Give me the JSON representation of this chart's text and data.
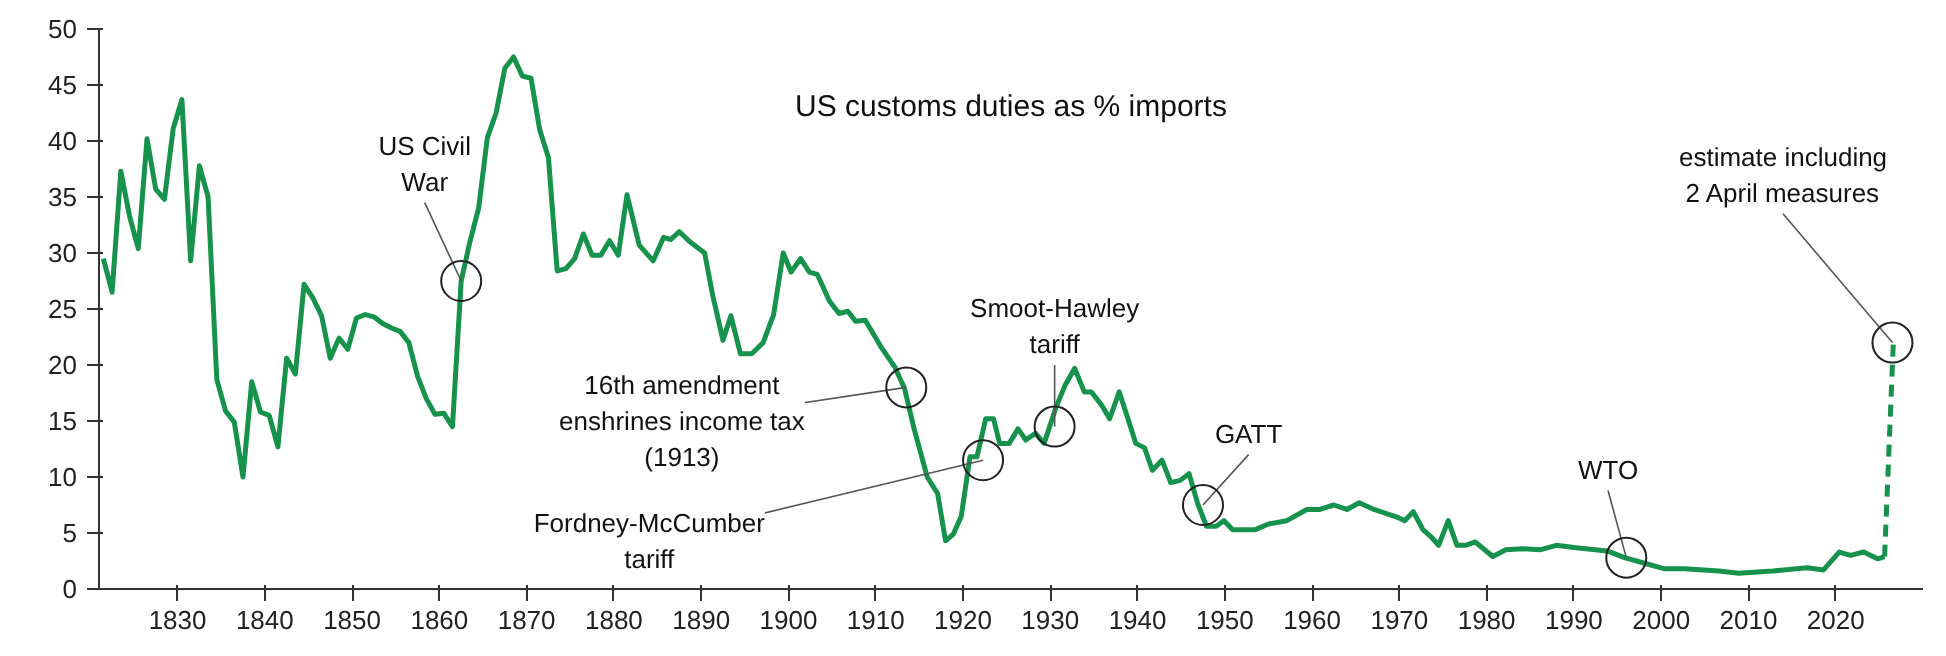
{
  "chart_data": {
    "type": "line",
    "title": "US customs duties as % imports",
    "xlim": [
      1821,
      2030
    ],
    "xticks": [
      1830,
      1840,
      1850,
      1860,
      1870,
      1880,
      1890,
      1900,
      1910,
      1920,
      1930,
      1940,
      1950,
      1960,
      1970,
      1980,
      1990,
      2000,
      2010,
      2020
    ],
    "ylim": [
      0,
      50
    ],
    "yticks": [
      0,
      5,
      10,
      15,
      20,
      25,
      30,
      35,
      40,
      45,
      50
    ],
    "grid": false,
    "series": [
      {
        "color": "#16924c",
        "line_style": "solid",
        "x": [
          1821.5,
          1822.5,
          1823.5,
          1824.5,
          1825.5,
          1826.5,
          1827.5,
          1828.5,
          1829.5,
          1830.5,
          1831.5,
          1832.5,
          1833.5,
          1834.5,
          1835.5,
          1836.5,
          1837.5,
          1838.5,
          1839.5,
          1840.5,
          1841.5,
          1842.5,
          1843.5,
          1844.5,
          1845.5,
          1846.5,
          1847.5,
          1848.5,
          1849.5,
          1850.5,
          1851.5,
          1852.5,
          1853.5,
          1854.5,
          1855.5,
          1856.5,
          1857.5,
          1858.5,
          1859.5,
          1860.5,
          1861.5,
          1862.5,
          1863.5,
          1864.5,
          1865.5,
          1866.5,
          1867.5,
          1868.5,
          1869.5,
          1870.5,
          1871.5,
          1872.5,
          1873.5,
          1874.5,
          1875.5,
          1876.5,
          1877.5,
          1878.5,
          1879.5,
          1880.5,
          1881.5,
          1882.9,
          1884.5,
          1885.7,
          1886.5,
          1887.5,
          1888.7,
          1890.4,
          1891.3,
          1892.5,
          1893.4,
          1894.5,
          1895.8,
          1897.1,
          1898.3,
          1899.4,
          1900.3,
          1901.4,
          1902.4,
          1903.3,
          1904.7,
          1905.8,
          1906.8,
          1907.7,
          1908.8,
          1910.7,
          1912.2,
          1913.3,
          1914.4,
          1915.9,
          1917.1,
          1918.0,
          1918.9,
          1919.8,
          1920.8,
          1921.6,
          1922.6,
          1923.5,
          1924.2,
          1925.3,
          1926.3,
          1927.2,
          1928.3,
          1929.3,
          1930.6,
          1931.7,
          1932.8,
          1933.9,
          1934.7,
          1935.9,
          1936.8,
          1937.9,
          1938.9,
          1939.8,
          1940.8,
          1941.7,
          1942.8,
          1943.8,
          1944.9,
          1945.9,
          1946.9,
          1947.9,
          1949.0,
          1949.9,
          1950.9,
          1953.5,
          1955.0,
          1957.1,
          1959.4,
          1960.9,
          1962.5,
          1964.0,
          1965.4,
          1967.1,
          1969.8,
          1970.6,
          1971.6,
          1972.7,
          1973.7,
          1974.5,
          1975.6,
          1976.6,
          1977.6,
          1978.7,
          1980.7,
          1982.2,
          1984.1,
          1986.1,
          1988.0,
          1990.0,
          1993.8,
          1995.8,
          1998.1,
          2000.4,
          2002.7,
          2006.6,
          2008.9,
          2012.8,
          2016.7,
          2018.6,
          2020.4,
          2021.7,
          2023.2,
          2024.8,
          2025.6
        ],
        "values": [
          29.5,
          26.5,
          37.3,
          33.3,
          30.4,
          40.2,
          35.7,
          34.8,
          41.1,
          43.7,
          29.3,
          37.8,
          35,
          18.7,
          15.9,
          14.9,
          10,
          18.5,
          15.8,
          15.5,
          12.7,
          20.6,
          19.2,
          27.2,
          26,
          24.4,
          20.6,
          22.4,
          21.4,
          24.2,
          24.5,
          24.3,
          23.7,
          23.3,
          23,
          22,
          19,
          17,
          15.6,
          15.7,
          14.5,
          27.5,
          31,
          34,
          40.3,
          42.5,
          46.5,
          47.5,
          45.8,
          45.6,
          41,
          38.5,
          28.4,
          28.6,
          29.5,
          31.7,
          29.8,
          29.8,
          31.1,
          29.8,
          35.2,
          30.7,
          29.3,
          31.4,
          31.2,
          31.9,
          31,
          30,
          26.3,
          22.2,
          24.4,
          21,
          21,
          22,
          24.5,
          30,
          28.3,
          29.5,
          28.3,
          28.1,
          25.7,
          24.6,
          24.8,
          23.9,
          24,
          21.5,
          19.8,
          17.9,
          14.3,
          10,
          8.5,
          4.3,
          4.9,
          6.5,
          11.8,
          11.8,
          15.2,
          15.2,
          13,
          13,
          14.3,
          13.3,
          13.9,
          13,
          16.1,
          18.2,
          19.7,
          17.6,
          17.6,
          16.4,
          15.2,
          17.6,
          15.2,
          13,
          12.6,
          10.6,
          11.5,
          9.5,
          9.7,
          10.3,
          7.6,
          5.6,
          5.6,
          6.1,
          5.3,
          5.3,
          5.8,
          6.1,
          7.1,
          7.1,
          7.5,
          7.1,
          7.7,
          7.1,
          6.4,
          6.1,
          6.9,
          5.3,
          4.6,
          3.9,
          6.1,
          3.9,
          3.9,
          4.2,
          2.9,
          3.5,
          3.6,
          3.5,
          3.9,
          3.7,
          3.4,
          2.8,
          2.3,
          1.8,
          1.8,
          1.6,
          1.4,
          1.6,
          1.9,
          1.7,
          3.3,
          3,
          3.3,
          2.7,
          2.9
        ]
      },
      {
        "color": "#16924c",
        "line_style": "dashed",
        "x": [
          2025.6,
          2026.6
        ],
        "values": [
          2.9,
          22
        ]
      }
    ],
    "annotations": [
      {
        "text": "US Civil\nWar",
        "x": 1862.5,
        "y": 27.5
      },
      {
        "text": "16th amendment\nenshrines income tax\n(1913)",
        "x": 1913.5,
        "y": 18
      },
      {
        "text": "Fordney-McCumber\ntariff",
        "x": 1922.3,
        "y": 11.5
      },
      {
        "text": "Smoot-Hawley\ntariff",
        "x": 1930.5,
        "y": 14.5
      },
      {
        "text": "GATT",
        "x": 1947.5,
        "y": 7.5
      },
      {
        "text": "WTO",
        "x": 1996,
        "y": 2.8
      },
      {
        "text": "estimate including\n2 April measures",
        "x": 2026.5,
        "y": 22
      }
    ]
  }
}
